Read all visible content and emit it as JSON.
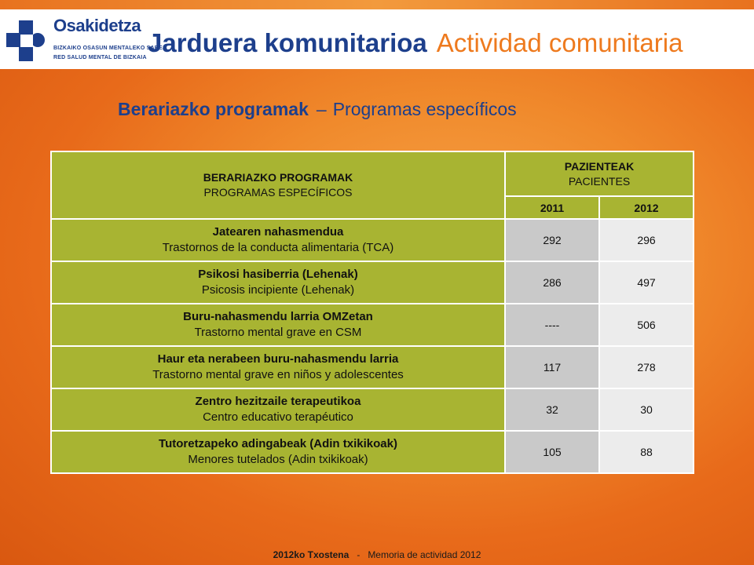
{
  "logo": {
    "name": "Osakidetza",
    "line1": "Bizkaiko Osasun Mentaleko Sarea",
    "line2": "Red Salud Mental de Bizkaia",
    "color": "#1d3f8c"
  },
  "title": {
    "eu": "Jarduera komunitarioa",
    "es": "Actividad comunitaria"
  },
  "subtitle": {
    "eu": "Berariazko programak",
    "sep": "–",
    "es": "Programas específicos"
  },
  "table": {
    "header_programs_eu": "BERARIAZKO PROGRAMAK",
    "header_programs_es": "PROGRAMAS ESPECÍFICOS",
    "header_patients_eu": "PAZIENTEAK",
    "header_patients_es": "PACIENTES",
    "years": [
      "2011",
      "2012"
    ],
    "rows": [
      {
        "eu": "Jatearen nahasmendua",
        "es": "Trastornos de la conducta alimentaria (TCA)",
        "v2011": "292",
        "v2012": "296"
      },
      {
        "eu": "Psikosi hasiberria (Lehenak)",
        "es": "Psicosis incipiente (Lehenak)",
        "v2011": "286",
        "v2012": "497"
      },
      {
        "eu": "Buru-nahasmendu larria OMZetan",
        "es": "Trastorno mental grave en CSM",
        "v2011": "----",
        "v2012": "506"
      },
      {
        "eu": "Haur eta nerabeen buru-nahasmendu larria",
        "es": "Trastorno mental grave en niños y adolescentes",
        "v2011": "117",
        "v2012": "278"
      },
      {
        "eu": "Zentro hezitzaile terapeutikoa",
        "es": "Centro educativo terapéutico",
        "v2011": "32",
        "v2012": "30"
      },
      {
        "eu": "Tutoretzapeko adingabeak (Adin txikikoak)",
        "es": "Menores tutelados (Adin txikikoak)",
        "v2011": "105",
        "v2012": "88"
      }
    ],
    "colors": {
      "header": "#a8b432",
      "col2011": "#c9c9c9",
      "col2012": "#ececec"
    }
  },
  "footer": {
    "eu": "2012ko Txostena",
    "sep": "-",
    "es": "Memoria de actividad 2012"
  }
}
